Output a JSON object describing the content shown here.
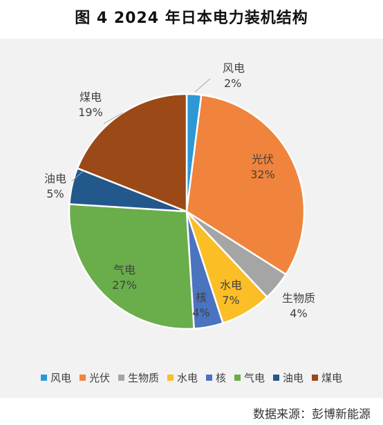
{
  "title": "图 4  2024 年日本电力装机结构",
  "source": "数据来源：彭博新能源",
  "chart_data": {
    "type": "pie",
    "title": "图 4  2024 年日本电力装机结构",
    "legend_position": "bottom",
    "categories": [
      "风电",
      "光伏",
      "生物质",
      "水电",
      "核",
      "气电",
      "油电",
      "煤电"
    ],
    "values": [
      2,
      32,
      4,
      7,
      4,
      27,
      5,
      19
    ],
    "value_labels": [
      "2%",
      "32%",
      "4%",
      "7%",
      "4%",
      "27%",
      "5%",
      "19%"
    ],
    "colors": [
      "#2e98d6",
      "#f0843c",
      "#a5a5a5",
      "#fbbe27",
      "#4a73c0",
      "#6aad4b",
      "#22588c",
      "#9a4917"
    ]
  }
}
